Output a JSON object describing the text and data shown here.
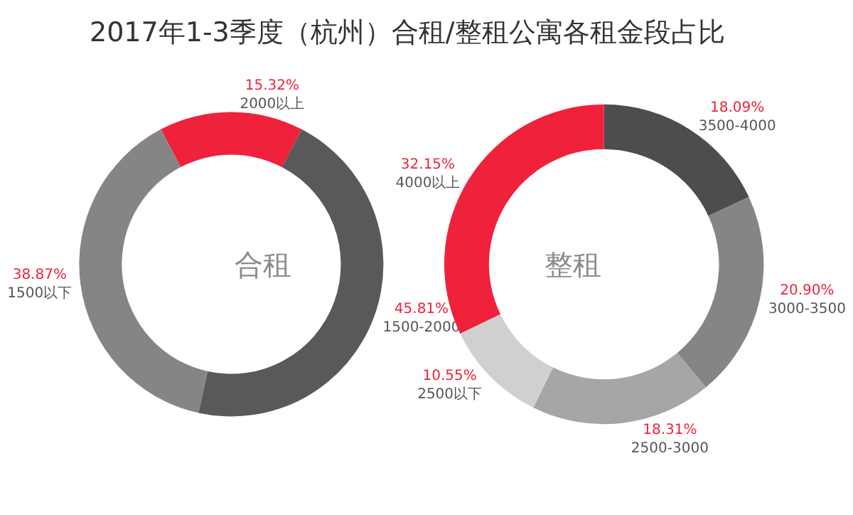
{
  "chart_data": [
    {
      "type": "donut",
      "title": "2017年1-3季度（杭州）合租/整租公寓各租金段占比",
      "annotations": [
        "合租"
      ],
      "categories": [
        "2000以上",
        "1500-2000",
        "1500以下"
      ],
      "values": [
        15.32,
        45.81,
        38.87
      ],
      "value_labels": [
        "15.32%",
        "45.81%",
        "38.87%"
      ],
      "colors": [
        "#f0213a",
        "#595959",
        "#858585"
      ]
    },
    {
      "type": "donut",
      "annotations": [
        "整租"
      ],
      "categories": [
        "3500-4000",
        "3000-3500",
        "2500-3000",
        "2500以下",
        "4000以上"
      ],
      "values": [
        18.09,
        20.9,
        18.31,
        10.55,
        32.15
      ],
      "value_labels": [
        "18.09%",
        "20.90%",
        "18.31%",
        "10.55%",
        "32.15%"
      ],
      "colors": [
        "#4d4d4d",
        "#858585",
        "#a6a6a6",
        "#d0d0d0",
        "#f0213a"
      ]
    }
  ]
}
